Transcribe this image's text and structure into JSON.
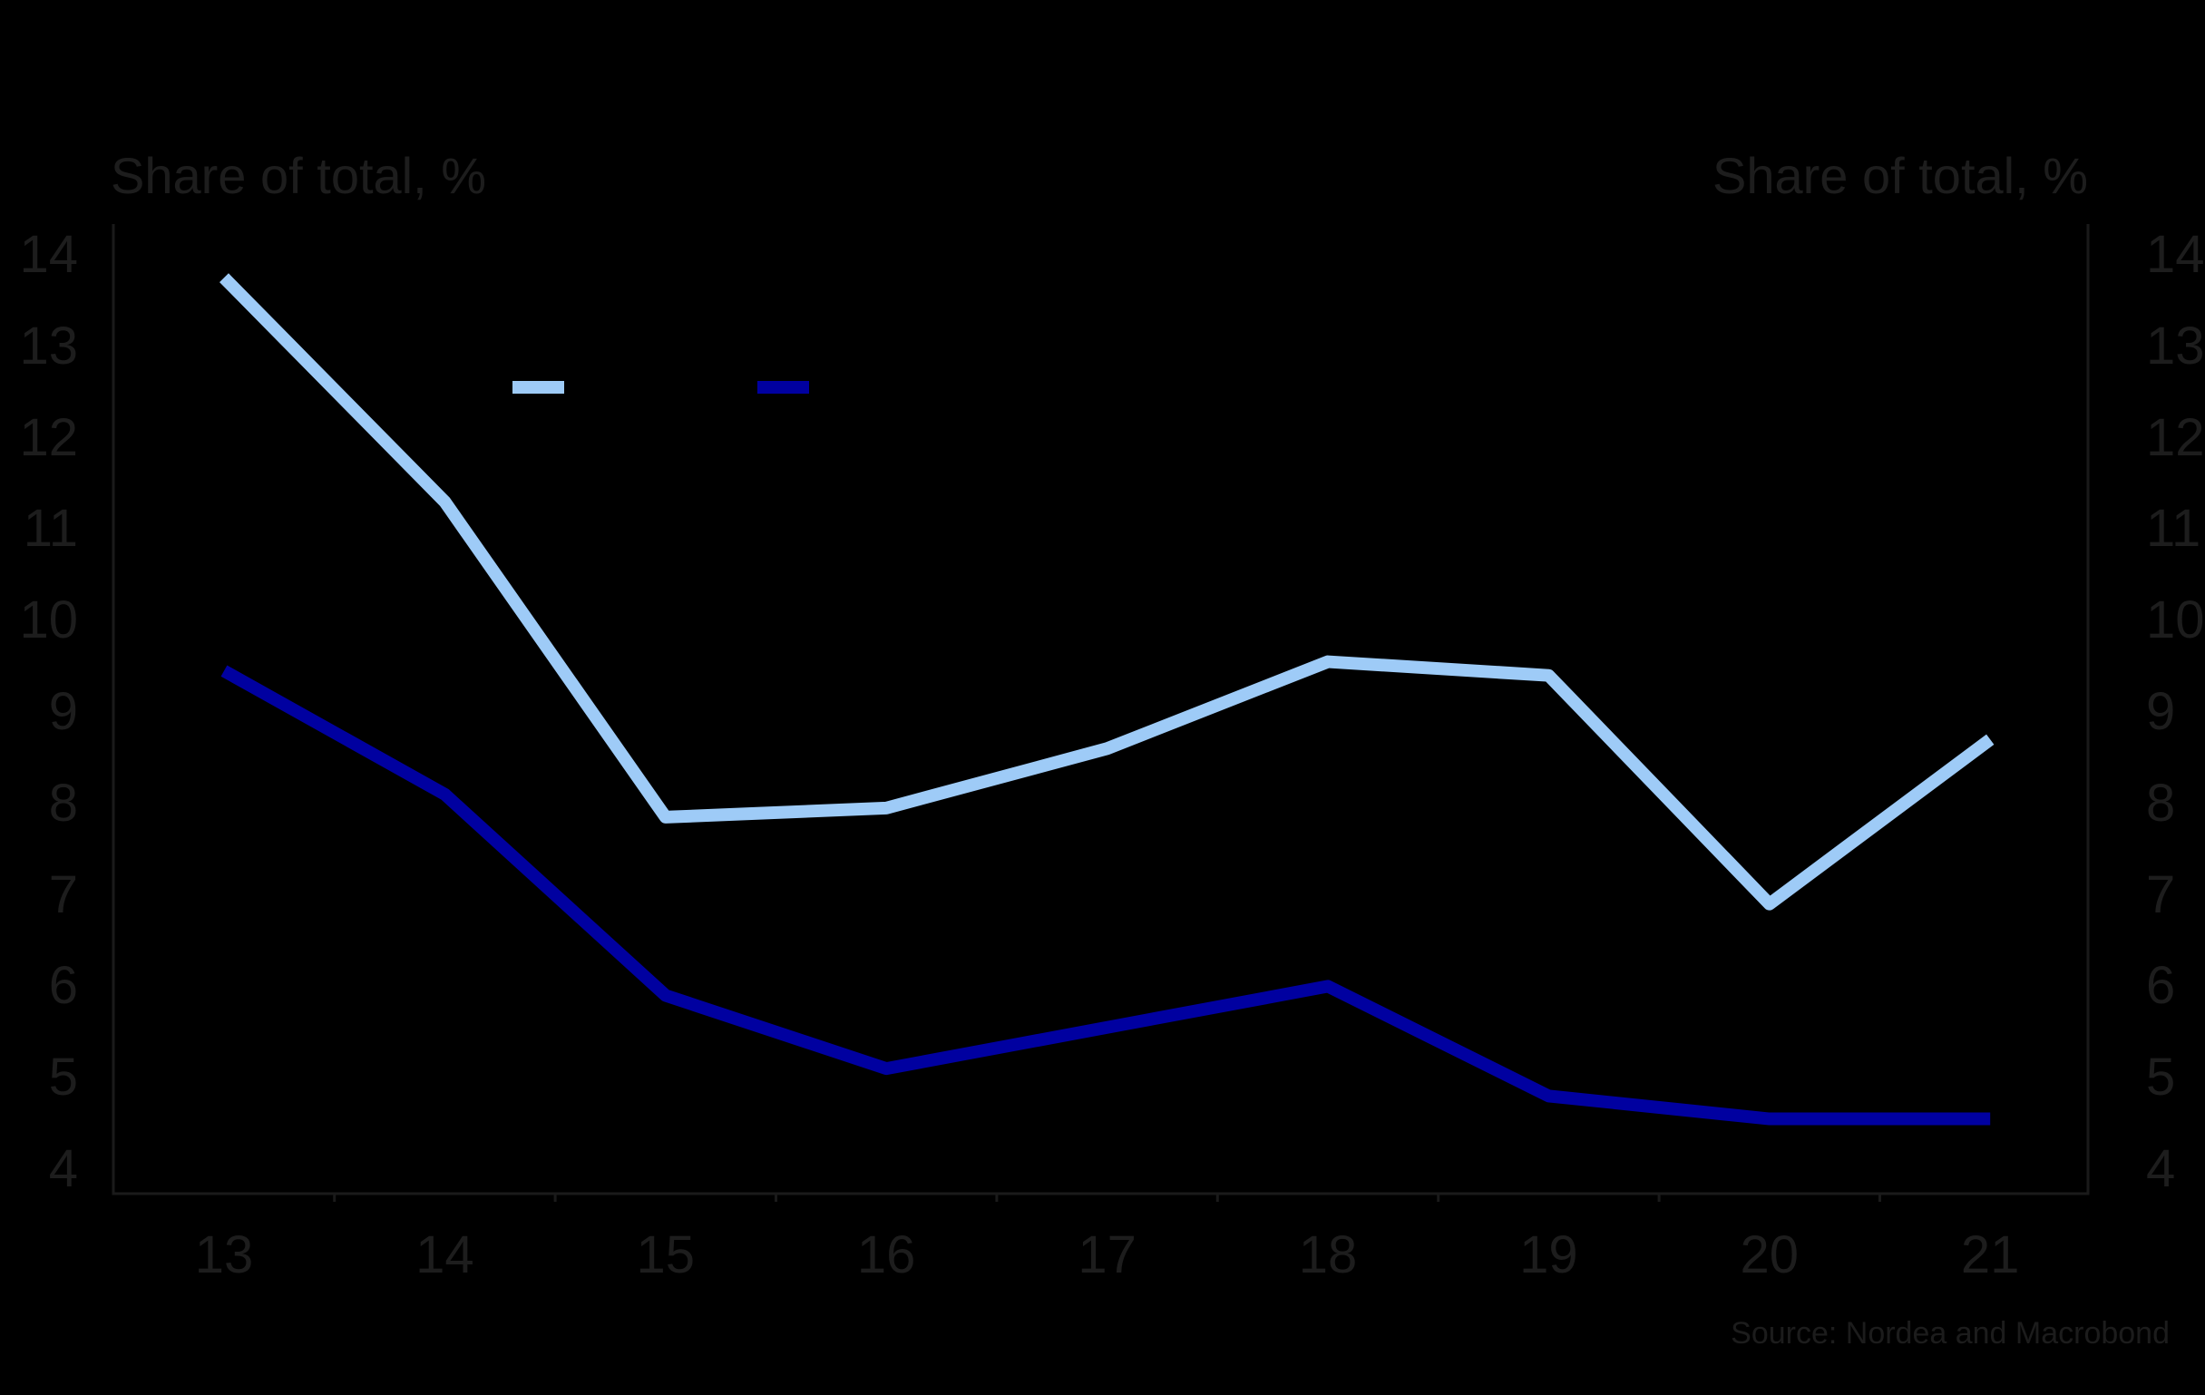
{
  "header": {
    "left_axis_title": "Share of total, %",
    "right_axis_title": "Share of total, %"
  },
  "source": {
    "text": "Source: Nordea and Macrobond"
  },
  "colors": {
    "background": "#000000",
    "axis_line": "#1a1a1a",
    "text": "#1d1d1d",
    "series_light": "#9ECBF7",
    "series_dark": "#0000A0"
  },
  "legend": {
    "items": [
      {
        "name": "light-blue-series",
        "swatch_color": "#9ECBF7"
      },
      {
        "name": "dark-blue-series",
        "swatch_color": "#0000A0"
      }
    ]
  },
  "chart_data": {
    "type": "line",
    "title": "",
    "xlabel": "",
    "ylabel_left": "Share of total, %",
    "ylabel_right": "Share of total, %",
    "categories": [
      "13",
      "14",
      "15",
      "16",
      "17",
      "18",
      "19",
      "20",
      "21"
    ],
    "series": [
      {
        "name": "light-blue-series",
        "color": "#9ECBF7",
        "values": [
          13.75,
          11.3,
          7.85,
          7.95,
          8.6,
          9.55,
          9.4,
          6.9,
          8.7
        ]
      },
      {
        "name": "dark-blue-series",
        "color": "#0000A0",
        "values": [
          9.45,
          8.1,
          5.9,
          5.1,
          5.55,
          6.0,
          4.8,
          4.55,
          4.55
        ]
      }
    ],
    "ylim": [
      4,
      14
    ],
    "yticks": [
      4,
      5,
      6,
      7,
      8,
      9,
      10,
      11,
      12,
      13,
      14
    ],
    "grid": false,
    "legend_position": "top-left-inside",
    "axes_shown": [
      "left",
      "right",
      "bottom"
    ]
  }
}
